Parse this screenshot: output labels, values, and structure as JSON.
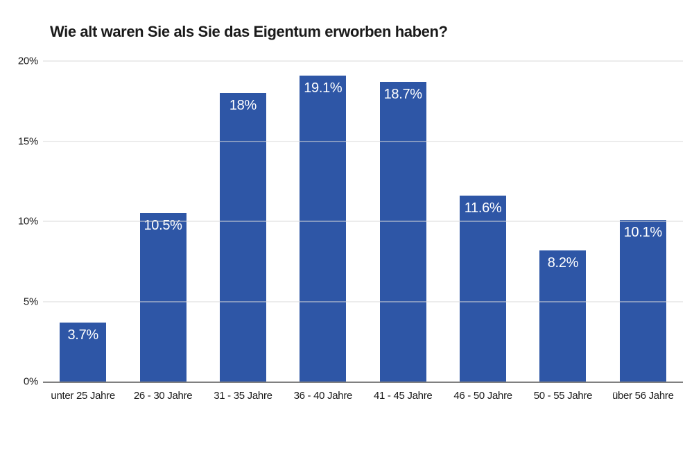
{
  "chart_data": {
    "type": "bar",
    "title": "Wie alt waren Sie als Sie das Eigentum erworben haben?",
    "categories": [
      "unter 25 Jahre",
      "26 - 30 Jahre",
      "31 - 35 Jahre",
      "36 - 40 Jahre",
      "41 - 45 Jahre",
      "46 - 50 Jahre",
      "50 - 55 Jahre",
      "über 56 Jahre"
    ],
    "values": [
      3.7,
      10.5,
      18,
      19.1,
      18.7,
      11.6,
      8.2,
      10.1
    ],
    "data_labels": [
      "3.7%",
      "10.5%",
      "18%",
      "19.1%",
      "18.7%",
      "11.6%",
      "8.2%",
      "10.1%"
    ],
    "y_ticks": [
      "0%",
      "5%",
      "10%",
      "15%",
      "20%"
    ],
    "y_tick_values": [
      0,
      5,
      10,
      15,
      20
    ],
    "ylim": [
      0,
      20
    ],
    "xlabel": "",
    "ylabel": "",
    "grid": "horizontal",
    "legend": "none",
    "colors": {
      "bar": "#2e56a6",
      "bar_label": "#ffffff",
      "gridline": "#d9d9d9",
      "baseline": "#808080",
      "text": "#1a1a1a"
    }
  }
}
